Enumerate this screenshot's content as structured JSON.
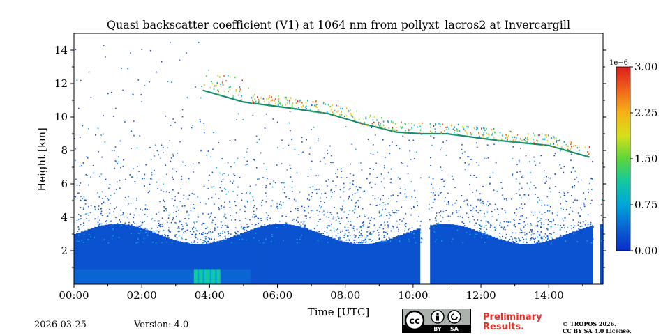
{
  "chart_data": {
    "type": "heatmap",
    "title": "Quasi backscatter coefficient (V1) at 1064 nm from pollyxt_lacros2 at Invercargill",
    "xlabel": "Time [UTC]",
    "ylabel": "Height [km]",
    "xlim_hours": [
      0,
      15.6
    ],
    "ylim_km": [
      0,
      15
    ],
    "x_ticks": [
      {
        "hour": 0,
        "label": "00:00"
      },
      {
        "hour": 2,
        "label": "02:00"
      },
      {
        "hour": 4,
        "label": "04:00"
      },
      {
        "hour": 6,
        "label": "06:00"
      },
      {
        "hour": 8,
        "label": "08:00"
      },
      {
        "hour": 10,
        "label": "10:00"
      },
      {
        "hour": 12,
        "label": "12:00"
      },
      {
        "hour": 14,
        "label": "14:00"
      }
    ],
    "y_ticks": [
      {
        "km": 2,
        "label": "2"
      },
      {
        "km": 4,
        "label": "4"
      },
      {
        "km": 6,
        "label": "6"
      },
      {
        "km": 8,
        "label": "8"
      },
      {
        "km": 10,
        "label": "10"
      },
      {
        "km": 12,
        "label": "12"
      },
      {
        "km": 14,
        "label": "14"
      }
    ],
    "colorbar": {
      "exponent_label": "1e−6",
      "range": [
        0,
        3.0
      ],
      "ticks": [
        {
          "value": 0.0,
          "label": "0.00"
        },
        {
          "value": 0.75,
          "label": "0.75"
        },
        {
          "value": 1.5,
          "label": "1.50"
        },
        {
          "value": 2.25,
          "label": "2.25"
        },
        {
          "value": 3.0,
          "label": "3.00"
        }
      ],
      "colormap": [
        "#0a2dc9",
        "#0a64d2",
        "#00a5d8",
        "#13c8a0",
        "#5bd63a",
        "#d6e01a",
        "#f5b316",
        "#f0641a",
        "#d91e1e"
      ]
    },
    "data_gaps_hours": [
      [
        10.25,
        10.45
      ],
      [
        15.3,
        15.5
      ]
    ],
    "cloud_top_profile": [
      {
        "hour": 3.8,
        "km": 11.6
      },
      {
        "hour": 5.0,
        "km": 10.9
      },
      {
        "hour": 6.5,
        "km": 10.5
      },
      {
        "hour": 7.5,
        "km": 10.2
      },
      {
        "hour": 8.5,
        "km": 9.6
      },
      {
        "hour": 9.5,
        "km": 9.1
      },
      {
        "hour": 10.25,
        "km": 9.0
      },
      {
        "hour": 11.0,
        "km": 9.0
      },
      {
        "hour": 12.5,
        "km": 8.6
      },
      {
        "hour": 14.0,
        "km": 8.3
      },
      {
        "hour": 15.2,
        "km": 7.6
      }
    ],
    "near_surface_layer_km": [
      0,
      0.9
    ]
  },
  "footer": {
    "date": "2026-03-25",
    "version": "Version: 4.0",
    "preliminary": [
      "Preliminary",
      "Results."
    ],
    "copyright": [
      "© TROPOS 2026.",
      "CC BY SA 4.0 License."
    ],
    "license_badge": {
      "cc": "cc",
      "by": "BY",
      "sa": "SA"
    }
  }
}
